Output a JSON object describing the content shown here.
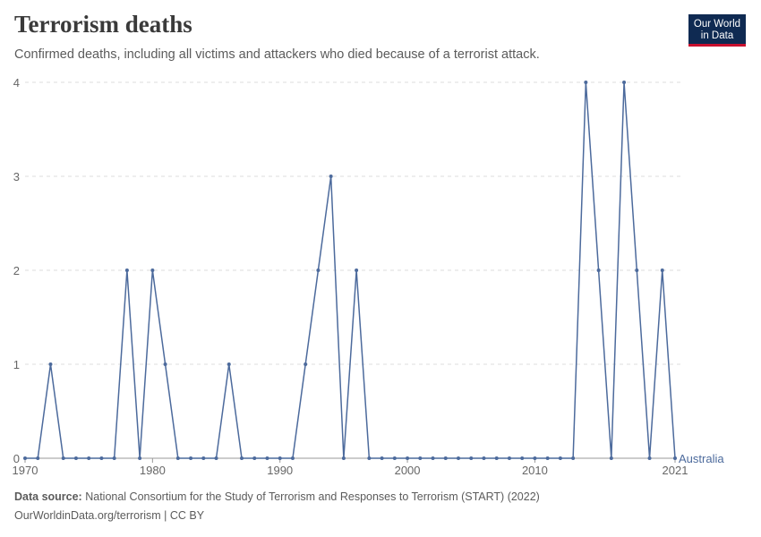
{
  "header": {
    "title": "Terrorism deaths",
    "subtitle": "Confirmed deaths, including all victims and attackers who died because of a terrorist attack."
  },
  "logo": {
    "line1": "Our World",
    "line2": "in Data",
    "bg_color": "#0f2a52",
    "accent_color": "#c8102e"
  },
  "footer": {
    "source_label": "Data source:",
    "source_text": "National Consortium for the Study of Terrorism and Responses to Terrorism (START) (2022)",
    "url_text": "OurWorldinData.org/terrorism | CC BY"
  },
  "chart_data": {
    "type": "line",
    "xlim": [
      1970,
      2021
    ],
    "ylim": [
      0,
      4
    ],
    "yticks": [
      0,
      1,
      2,
      3,
      4
    ],
    "xticks": [
      1970,
      1980,
      1990,
      2000,
      2010,
      2021
    ],
    "grid": "horizontal-dashed",
    "line_color": "#4c6a9c",
    "series": [
      {
        "name": "Australia",
        "x": [
          1970,
          1971,
          1972,
          1973,
          1974,
          1975,
          1976,
          1977,
          1978,
          1979,
          1980,
          1981,
          1982,
          1983,
          1984,
          1985,
          1986,
          1987,
          1988,
          1989,
          1990,
          1991,
          1992,
          1993,
          1994,
          1995,
          1996,
          1997,
          1998,
          1999,
          2000,
          2001,
          2002,
          2003,
          2004,
          2005,
          2006,
          2007,
          2008,
          2009,
          2010,
          2011,
          2012,
          2013,
          2014,
          2015,
          2016,
          2017,
          2018,
          2019,
          2020,
          2021
        ],
        "values": [
          0,
          0,
          1,
          0,
          0,
          0,
          0,
          0,
          2,
          0,
          2,
          1,
          0,
          0,
          0,
          0,
          1,
          0,
          0,
          0,
          0,
          0,
          1,
          2,
          3,
          0,
          2,
          0,
          0,
          0,
          0,
          0,
          0,
          0,
          0,
          0,
          0,
          0,
          0,
          0,
          0,
          0,
          0,
          0,
          4,
          2,
          0,
          4,
          2,
          0,
          2,
          0
        ]
      }
    ]
  }
}
